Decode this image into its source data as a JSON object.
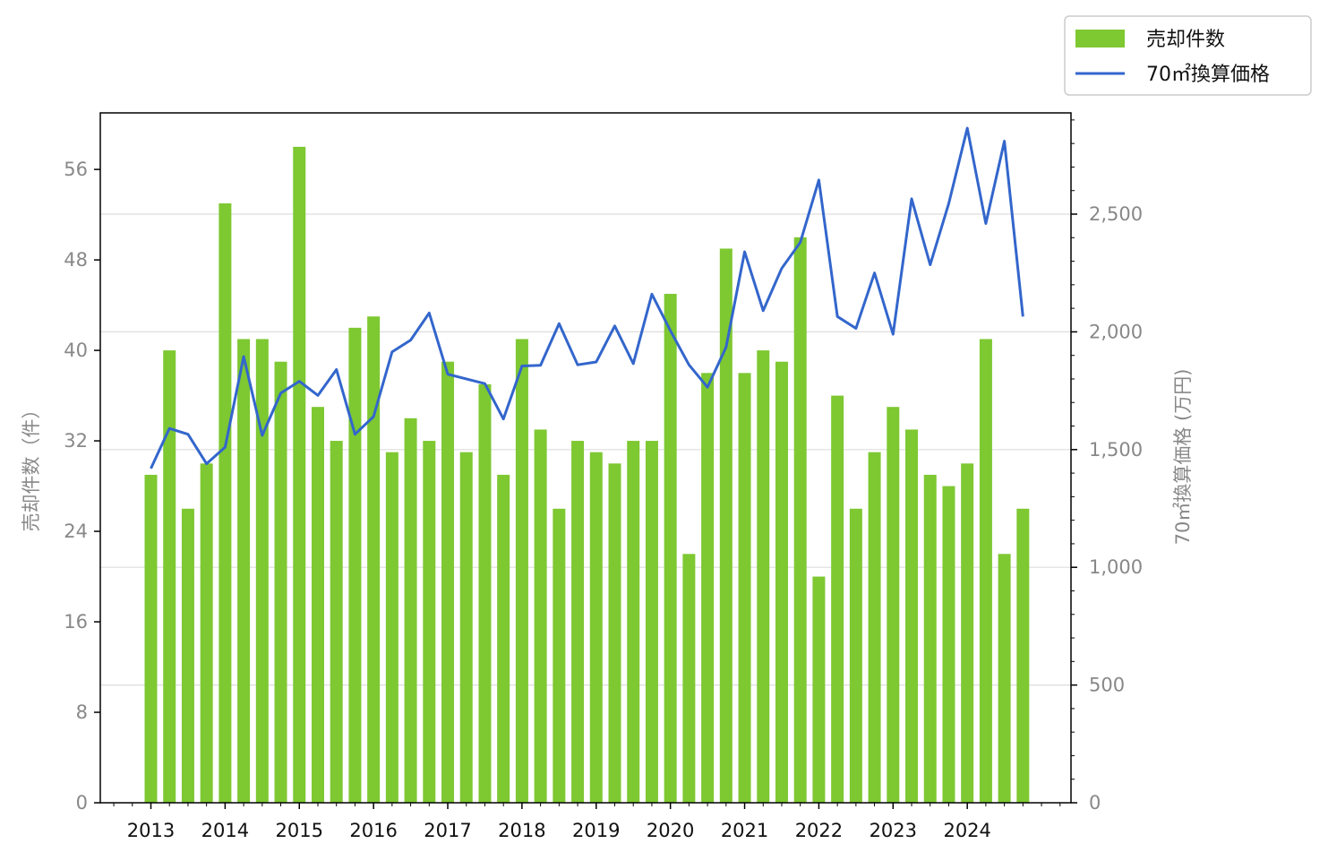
{
  "chart_data": {
    "type": "bar",
    "title": "",
    "xlabel": "",
    "ylabel": "売却件数（件）",
    "y2label": "70㎡換算価格 (万円)",
    "ylim": [
      0,
      61
    ],
    "y2lim": [
      0,
      2930
    ],
    "yticks": [
      "0",
      "8",
      "16",
      "24",
      "32",
      "40",
      "48",
      "56"
    ],
    "y2ticks": [
      "0",
      "500",
      "1,000",
      "1,500",
      "2,000",
      "2,500"
    ],
    "xticks": [
      "2013",
      "2014",
      "2015",
      "2016",
      "2017",
      "2018",
      "2019",
      "2020",
      "2021",
      "2022",
      "2023",
      "2024"
    ],
    "grid": "horizontal (right axis)",
    "legend_position": "top-right outside",
    "colors": {
      "bar": "#7ec832",
      "line": "#3366cc",
      "grid": "#dddddd",
      "tick_text": "#888888"
    },
    "series": [
      {
        "name": "売却件数",
        "type": "bar",
        "axis": "left",
        "values": [
          29,
          40,
          26,
          30,
          53,
          41,
          41,
          39,
          58,
          35,
          32,
          42,
          43,
          31,
          34,
          32,
          39,
          31,
          37,
          29,
          41,
          33,
          26,
          32,
          31,
          30,
          32,
          32,
          45,
          22,
          38,
          49,
          38,
          40,
          39,
          50,
          20,
          36,
          26,
          31,
          35,
          33,
          29,
          28,
          30,
          41,
          22,
          26
        ]
      },
      {
        "name": "70㎡換算価格",
        "type": "line",
        "axis": "right",
        "values": [
          1420,
          1590,
          1565,
          1440,
          1510,
          1895,
          1560,
          1740,
          1790,
          1730,
          1840,
          1565,
          1640,
          1915,
          1965,
          2080,
          1820,
          1800,
          1780,
          1630,
          1855,
          1858,
          2035,
          1860,
          1872,
          2025,
          1865,
          2160,
          2005,
          1860,
          1765,
          1935,
          2340,
          2090,
          2270,
          2380,
          2645,
          2065,
          2015,
          2250,
          1990,
          2565,
          2285,
          2545,
          2865,
          2460,
          2810,
          2065
        ]
      }
    ],
    "x_start_year": 2013,
    "periods_per_year": 4
  }
}
